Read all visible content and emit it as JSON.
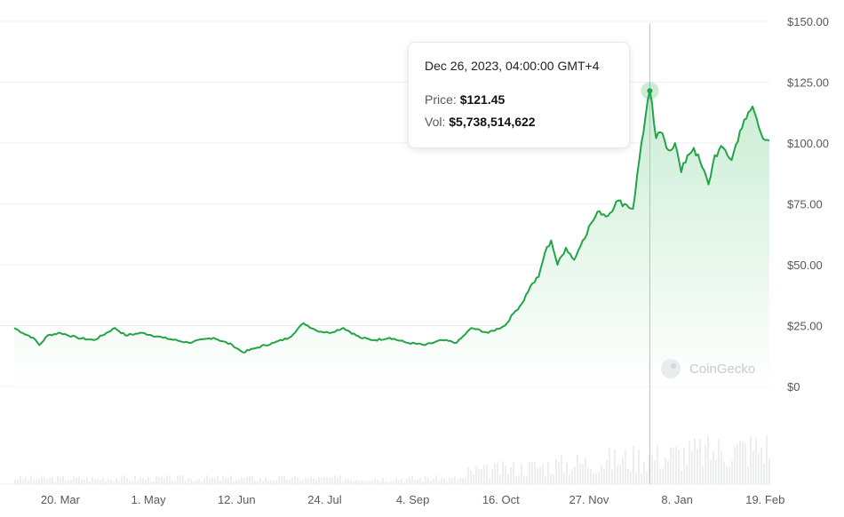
{
  "tooltip": {
    "date": "Dec 26, 2023, 04:00:00 GMT+4",
    "price_label": "Price:",
    "price_value": "$121.45",
    "vol_label": "Vol:",
    "vol_value": "$5,738,514,622"
  },
  "watermark": {
    "text": "CoinGecko"
  },
  "colors": {
    "line": "#22a447",
    "area_top": "#c6ecd1",
    "area_bottom": "#ffffff",
    "crosshair": "#b9bec4",
    "grid": "#eef0f2",
    "volume": "#eceef0"
  },
  "chart_data": {
    "type": "area",
    "title": "",
    "xlabel": "",
    "ylabel": "",
    "y_tick_labels": [
      "$150.00",
      "$125.00",
      "$100.00",
      "$75.00",
      "$50.00",
      "$25.00",
      "$0"
    ],
    "y_ticks": [
      150,
      125,
      100,
      75,
      50,
      25,
      0
    ],
    "ylim": [
      0,
      150
    ],
    "x_tick_labels": [
      "20. Mar",
      "1. May",
      "12. Jun",
      "24. Jul",
      "4. Sep",
      "16. Oct",
      "27. Nov",
      "8. Jan",
      "19. Feb"
    ],
    "x_tick_dates": [
      "2023-03-20",
      "2023-05-01",
      "2023-06-12",
      "2023-07-24",
      "2023-09-04",
      "2023-10-16",
      "2023-11-27",
      "2024-01-08",
      "2024-02-19"
    ],
    "xlim": [
      "2023-02-26",
      "2024-02-21"
    ],
    "grid": true,
    "series": [
      {
        "x": [
          "2023-02-26",
          "2023-03-02",
          "2023-03-07",
          "2023-03-10",
          "2023-03-14",
          "2023-03-20",
          "2023-03-28",
          "2023-04-05",
          "2023-04-15",
          "2023-04-20",
          "2023-04-28",
          "2023-05-08",
          "2023-05-20",
          "2023-06-01",
          "2023-06-10",
          "2023-06-15",
          "2023-06-22",
          "2023-06-30",
          "2023-07-07",
          "2023-07-14",
          "2023-07-20",
          "2023-07-26",
          "2023-08-02",
          "2023-08-10",
          "2023-08-17",
          "2023-08-24",
          "2023-09-01",
          "2023-09-10",
          "2023-09-18",
          "2023-09-25",
          "2023-10-02",
          "2023-10-10",
          "2023-10-18",
          "2023-10-22",
          "2023-10-26",
          "2023-10-30",
          "2023-11-03",
          "2023-11-06",
          "2023-11-09",
          "2023-11-12",
          "2023-11-16",
          "2023-11-20",
          "2023-11-24",
          "2023-11-28",
          "2023-12-02",
          "2023-12-06",
          "2023-12-10",
          "2023-12-14",
          "2023-12-18",
          "2023-12-22",
          "2023-12-26",
          "2023-12-29",
          "2024-01-01",
          "2024-01-04",
          "2024-01-07",
          "2024-01-10",
          "2024-01-13",
          "2024-01-16",
          "2024-01-20",
          "2024-01-23",
          "2024-01-26",
          "2024-01-30",
          "2024-02-03",
          "2024-02-07",
          "2024-02-10",
          "2024-02-13",
          "2024-02-17",
          "2024-02-21"
        ],
        "values": [
          24,
          22,
          20,
          17,
          21,
          22,
          20,
          19,
          24,
          21,
          22,
          20,
          18,
          20,
          17,
          14,
          16,
          18,
          20,
          26,
          23,
          22,
          24,
          20,
          19,
          20,
          18,
          17,
          19,
          18,
          24,
          22,
          25,
          30,
          34,
          41,
          45,
          55,
          60,
          50,
          57,
          52,
          60,
          67,
          72,
          70,
          76,
          75,
          73,
          100,
          121.45,
          102,
          104,
          97,
          100,
          88,
          95,
          98,
          90,
          83,
          95,
          98,
          93,
          105,
          110,
          115,
          104,
          101
        ]
      }
    ],
    "volume_present": true
  }
}
